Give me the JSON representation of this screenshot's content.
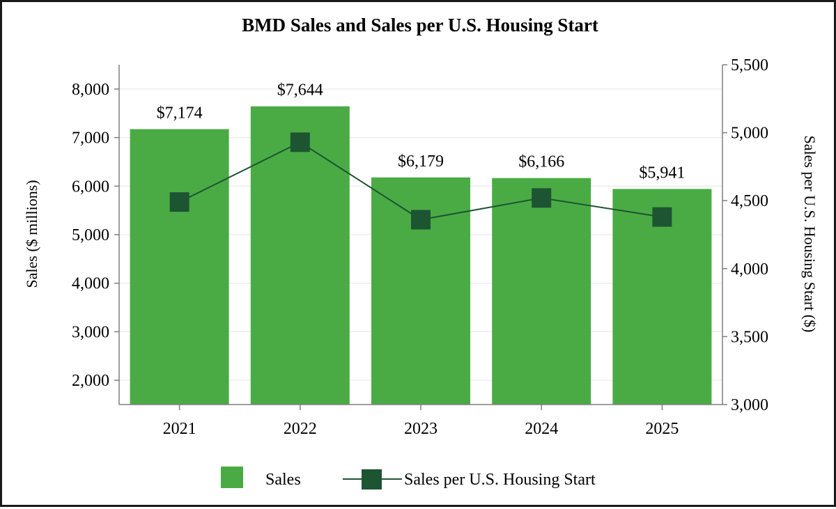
{
  "chart_data": {
    "type": "bar",
    "title": "BMD Sales and Sales per U.S. Housing Start",
    "categories": [
      "2021",
      "2022",
      "2023",
      "2024",
      "2025"
    ],
    "series": [
      {
        "name": "Sales",
        "type": "bar",
        "axis": "left",
        "values": [
          7174,
          7644,
          6179,
          6166,
          5941
        ],
        "data_labels": [
          "$7,174",
          "$7,644",
          "$6,179",
          "$6,166",
          "$5,941"
        ],
        "color": "#4aab44"
      },
      {
        "name": "Sales per U.S. Housing Start",
        "type": "line",
        "axis": "right",
        "values": [
          4490,
          4930,
          4360,
          4520,
          4380
        ],
        "color": "#1d5432"
      }
    ],
    "xlabel": "",
    "ylabel": "Sales ($ millions)",
    "y2label": "Sales per U.S. Housing Start ($)",
    "ylim": [
      1500,
      8500
    ],
    "y2lim": [
      3000,
      5500
    ],
    "yticks": [
      2000,
      3000,
      4000,
      5000,
      6000,
      7000,
      8000
    ],
    "ytick_labels": [
      "2,000",
      "3,000",
      "4,000",
      "5,000",
      "6,000",
      "7,000",
      "8,000"
    ],
    "y2ticks": [
      3000,
      3500,
      4000,
      4500,
      5000,
      5500
    ],
    "y2tick_labels": [
      "3,000",
      "3,500",
      "4,000",
      "4,500",
      "5,000",
      "5,500"
    ],
    "grid": true,
    "legend_position": "bottom-center",
    "legend": [
      "Sales",
      "Sales per U.S. Housing Start"
    ]
  }
}
